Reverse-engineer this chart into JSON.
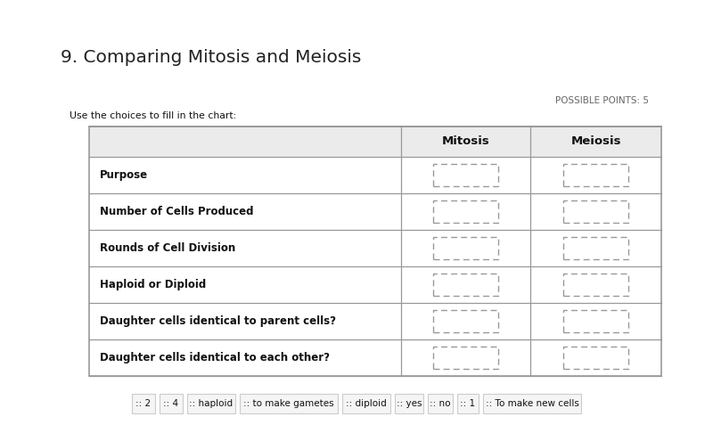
{
  "title": "9. Comparing Mitosis and Meiosis",
  "possible_points": "POSSIBLE POINTS: 5",
  "instruction": "Use the choices to fill in the chart:",
  "col_headers": [
    "Mitosis",
    "Meiosis"
  ],
  "row_labels": [
    "Purpose",
    "Number of Cells Produced",
    "Rounds of Cell Division",
    "Haploid or Diploid",
    "Daughter cells identical to parent cells?",
    "Daughter cells identical to each other?"
  ],
  "word_bank": [
    ":: 2",
    ":: 4",
    ":: haploid",
    ":: to make gametes",
    ":: diploid",
    ":: yes",
    ":: no",
    ":: 1",
    ":: To make new cells"
  ],
  "bg_color": "#f2f2f2",
  "page_bg": "#ffffff",
  "table_bg": "#ffffff",
  "header_bg": "#ebebeb",
  "border_color": "#999999",
  "text_color": "#111111",
  "title_color": "#222222",
  "subtitle_color": "#666666",
  "word_bank_bg": "#f5f5f5",
  "word_bank_border": "#cccccc"
}
